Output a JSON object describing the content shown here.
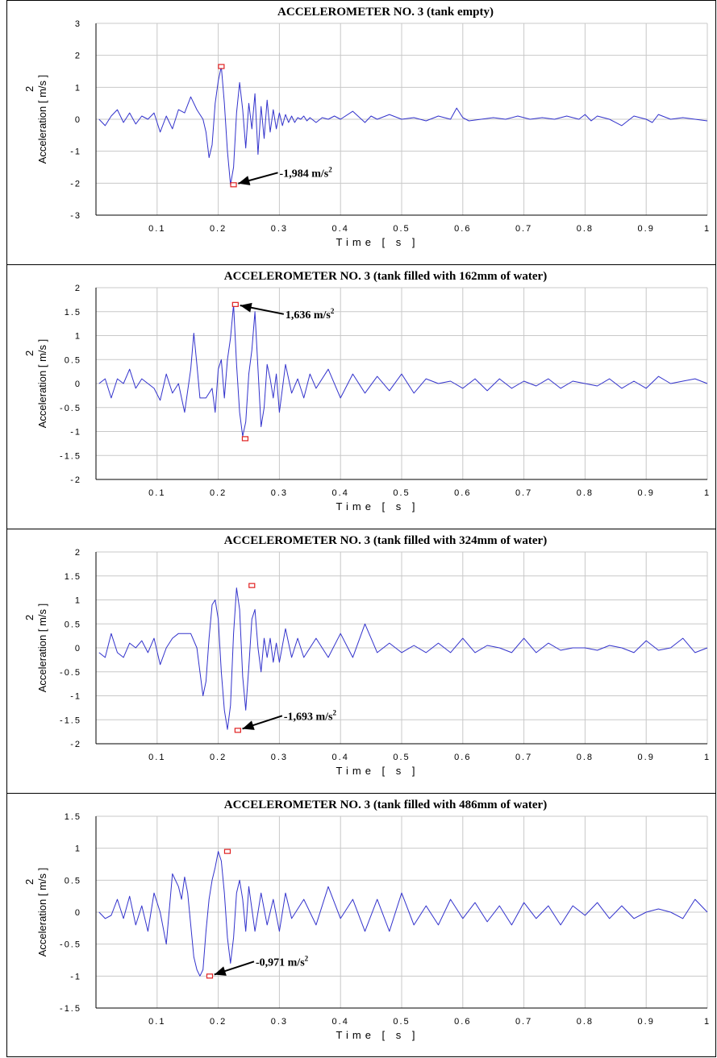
{
  "chart_data": [
    {
      "type": "line",
      "title": "ACCELEROMETER NO. 3 (tank empty)",
      "xlabel": "Time [ s ]",
      "ylabel": "Acceleration [ m/s ]",
      "ylabel_sup": "2",
      "xlim": [
        0,
        1.0
      ],
      "ylim": [
        -3,
        3
      ],
      "xticks": [
        "0.1",
        "0.2",
        "0.3",
        "0.4",
        "0.5",
        "0.6",
        "0.7",
        "0.8",
        "0.9",
        "1"
      ],
      "yticks": [
        "3",
        "2",
        "1",
        "0",
        "-1",
        "-2",
        "-3"
      ],
      "grid": true,
      "series": [
        {
          "color": "#3333cc",
          "x": [
            0.005,
            0.015,
            0.025,
            0.035,
            0.045,
            0.055,
            0.065,
            0.075,
            0.085,
            0.095,
            0.105,
            0.115,
            0.125,
            0.135,
            0.145,
            0.155,
            0.165,
            0.175,
            0.18,
            0.185,
            0.19,
            0.195,
            0.2,
            0.205,
            0.21,
            0.215,
            0.22,
            0.225,
            0.23,
            0.235,
            0.24,
            0.245,
            0.25,
            0.255,
            0.26,
            0.265,
            0.27,
            0.275,
            0.28,
            0.285,
            0.29,
            0.295,
            0.3,
            0.305,
            0.31,
            0.315,
            0.32,
            0.325,
            0.33,
            0.335,
            0.34,
            0.345,
            0.35,
            0.36,
            0.37,
            0.38,
            0.39,
            0.4,
            0.42,
            0.44,
            0.45,
            0.46,
            0.48,
            0.5,
            0.52,
            0.54,
            0.56,
            0.58,
            0.59,
            0.6,
            0.61,
            0.63,
            0.65,
            0.67,
            0.69,
            0.71,
            0.73,
            0.75,
            0.77,
            0.79,
            0.8,
            0.81,
            0.82,
            0.84,
            0.86,
            0.88,
            0.9,
            0.91,
            0.92,
            0.94,
            0.96,
            0.98,
            1.0
          ],
          "y": [
            0.0,
            -0.2,
            0.1,
            0.3,
            -0.1,
            0.2,
            -0.15,
            0.1,
            0.0,
            0.2,
            -0.4,
            0.1,
            -0.3,
            0.3,
            0.2,
            0.7,
            0.3,
            0.0,
            -0.4,
            -1.2,
            -0.8,
            0.5,
            1.2,
            1.65,
            0.5,
            -1.0,
            -2.05,
            -1.5,
            0.2,
            1.15,
            0.3,
            -0.9,
            0.5,
            -0.3,
            0.8,
            -1.1,
            0.4,
            -0.6,
            0.6,
            -0.4,
            0.3,
            -0.3,
            0.2,
            -0.2,
            0.15,
            -0.1,
            0.1,
            -0.1,
            0.05,
            0.0,
            0.1,
            -0.05,
            0.05,
            -0.1,
            0.05,
            0.0,
            0.1,
            0.0,
            0.25,
            -0.1,
            0.1,
            0.0,
            0.15,
            0.0,
            0.05,
            -0.05,
            0.1,
            0.0,
            0.35,
            0.05,
            -0.05,
            0.0,
            0.05,
            0.0,
            0.1,
            0.0,
            0.05,
            0.0,
            0.1,
            0.0,
            0.15,
            -0.05,
            0.1,
            0.0,
            -0.2,
            0.1,
            0.0,
            -0.1,
            0.15,
            0.0,
            0.05,
            0.0,
            -0.05
          ]
        }
      ],
      "markers": [
        {
          "x": 0.205,
          "y": 1.65
        },
        {
          "x": 0.225,
          "y": -2.05
        }
      ],
      "annotation": {
        "text": "-1,984 m/s",
        "sup": "2",
        "x": 0.225,
        "y": -2.05
      }
    },
    {
      "type": "line",
      "title": "ACCELEROMETER NO. 3 (tank filled with 162mm of water)",
      "xlabel": "Time [ s ]",
      "ylabel": "Acceleration [ m/s ]",
      "ylabel_sup": "2",
      "xlim": [
        0,
        1.0
      ],
      "ylim": [
        -2,
        2
      ],
      "xticks": [
        "0.1",
        "0.2",
        "0.3",
        "0.4",
        "0.5",
        "0.6",
        "0.7",
        "0.8",
        "0.9",
        "1"
      ],
      "yticks": [
        "2",
        "1.5",
        "1",
        "0.5",
        "0",
        "-0.5",
        "-1",
        "-1.5",
        "-2"
      ],
      "grid": true,
      "series": [
        {
          "color": "#3333cc",
          "x": [
            0.005,
            0.015,
            0.025,
            0.035,
            0.045,
            0.055,
            0.065,
            0.075,
            0.085,
            0.095,
            0.105,
            0.115,
            0.125,
            0.135,
            0.145,
            0.155,
            0.16,
            0.165,
            0.17,
            0.18,
            0.19,
            0.195,
            0.2,
            0.205,
            0.21,
            0.215,
            0.22,
            0.225,
            0.23,
            0.235,
            0.24,
            0.245,
            0.25,
            0.255,
            0.26,
            0.265,
            0.27,
            0.275,
            0.28,
            0.285,
            0.29,
            0.295,
            0.3,
            0.31,
            0.32,
            0.33,
            0.34,
            0.35,
            0.36,
            0.38,
            0.4,
            0.42,
            0.44,
            0.46,
            0.48,
            0.5,
            0.52,
            0.54,
            0.56,
            0.58,
            0.6,
            0.62,
            0.64,
            0.66,
            0.68,
            0.7,
            0.72,
            0.74,
            0.76,
            0.78,
            0.8,
            0.82,
            0.84,
            0.86,
            0.88,
            0.9,
            0.92,
            0.94,
            0.96,
            0.98,
            1.0
          ],
          "y": [
            0.0,
            0.1,
            -0.3,
            0.1,
            0.0,
            0.3,
            -0.1,
            0.1,
            0.0,
            -0.1,
            -0.35,
            0.2,
            -0.2,
            0.0,
            -0.6,
            0.3,
            1.05,
            0.4,
            -0.3,
            -0.3,
            -0.1,
            -0.6,
            0.3,
            0.5,
            -0.3,
            0.5,
            0.95,
            1.65,
            0.4,
            -0.6,
            -1.1,
            -0.8,
            0.2,
            0.7,
            1.5,
            0.3,
            -0.9,
            -0.5,
            0.4,
            0.1,
            -0.3,
            0.2,
            -0.6,
            0.4,
            -0.2,
            0.1,
            -0.3,
            0.2,
            -0.1,
            0.3,
            -0.3,
            0.2,
            -0.2,
            0.15,
            -0.15,
            0.2,
            -0.2,
            0.1,
            0.0,
            0.05,
            -0.1,
            0.1,
            -0.15,
            0.1,
            -0.1,
            0.05,
            -0.05,
            0.1,
            -0.1,
            0.05,
            0.0,
            -0.05,
            0.1,
            -0.1,
            0.05,
            -0.1,
            0.15,
            0.0,
            0.05,
            0.1,
            0.0
          ]
        }
      ],
      "markers": [
        {
          "x": 0.228,
          "y": 1.65
        },
        {
          "x": 0.244,
          "y": -1.15
        }
      ],
      "annotation": {
        "text": "1,636 m/s",
        "sup": "2",
        "x": 0.228,
        "y": 1.65
      }
    },
    {
      "type": "line",
      "title": "ACCELEROMETER NO. 3 (tank filled with 324mm of water)",
      "xlabel": "Time [ s ]",
      "ylabel": "Acceleration [ m/s ]",
      "ylabel_sup": "2",
      "xlim": [
        0,
        1.0
      ],
      "ylim": [
        -2,
        2
      ],
      "xticks": [
        "0.1",
        "0.2",
        "0.3",
        "0.4",
        "0.5",
        "0.6",
        "0.7",
        "0.8",
        "0.9",
        "1"
      ],
      "yticks": [
        "2",
        "1.5",
        "1",
        "0.5",
        "0",
        "-0.5",
        "-1",
        "-1.5",
        "-2"
      ],
      "grid": true,
      "series": [
        {
          "color": "#3333cc",
          "x": [
            0.005,
            0.015,
            0.025,
            0.035,
            0.045,
            0.055,
            0.065,
            0.075,
            0.085,
            0.095,
            0.105,
            0.115,
            0.125,
            0.135,
            0.145,
            0.155,
            0.165,
            0.17,
            0.175,
            0.18,
            0.185,
            0.19,
            0.195,
            0.2,
            0.205,
            0.21,
            0.215,
            0.22,
            0.225,
            0.23,
            0.235,
            0.24,
            0.245,
            0.25,
            0.255,
            0.26,
            0.265,
            0.27,
            0.275,
            0.28,
            0.285,
            0.29,
            0.295,
            0.3,
            0.31,
            0.32,
            0.33,
            0.34,
            0.36,
            0.38,
            0.4,
            0.42,
            0.44,
            0.45,
            0.46,
            0.48,
            0.5,
            0.52,
            0.54,
            0.56,
            0.58,
            0.6,
            0.62,
            0.64,
            0.66,
            0.68,
            0.7,
            0.72,
            0.74,
            0.76,
            0.78,
            0.8,
            0.82,
            0.84,
            0.86,
            0.88,
            0.9,
            0.92,
            0.94,
            0.96,
            0.98,
            1.0
          ],
          "y": [
            -0.1,
            -0.2,
            0.3,
            -0.1,
            -0.2,
            0.1,
            0.0,
            0.15,
            -0.1,
            0.2,
            -0.35,
            0.0,
            0.2,
            0.3,
            0.3,
            0.3,
            0.0,
            -0.5,
            -1.0,
            -0.7,
            0.2,
            0.9,
            1.0,
            0.6,
            -0.5,
            -1.3,
            -1.7,
            -1.2,
            0.3,
            1.25,
            0.8,
            -0.6,
            -1.3,
            -0.4,
            0.6,
            0.8,
            0.0,
            -0.5,
            0.2,
            -0.2,
            0.2,
            -0.3,
            0.1,
            -0.3,
            0.4,
            -0.2,
            0.2,
            -0.2,
            0.2,
            -0.2,
            0.3,
            -0.2,
            0.5,
            0.2,
            -0.1,
            0.1,
            -0.1,
            0.05,
            -0.1,
            0.1,
            -0.1,
            0.2,
            -0.1,
            0.05,
            0.0,
            -0.1,
            0.2,
            -0.1,
            0.1,
            -0.05,
            0.0,
            0.0,
            -0.05,
            0.05,
            0.0,
            -0.1,
            0.15,
            -0.05,
            0.0,
            0.2,
            -0.1,
            0.0
          ]
        }
      ],
      "markers": [
        {
          "x": 0.255,
          "y": 1.3
        },
        {
          "x": 0.232,
          "y": -1.72
        }
      ],
      "annotation": {
        "text": "-1,693 m/s",
        "sup": "2",
        "x": 0.232,
        "y": -1.72
      }
    },
    {
      "type": "line",
      "title": "ACCELEROMETER NO. 3 (tank filled with 486mm of water)",
      "xlabel": "Time [ s ]",
      "ylabel": "Acceleration [ m/s ]",
      "ylabel_sup": "2",
      "xlim": [
        0,
        1.0
      ],
      "ylim": [
        -1.5,
        1.5
      ],
      "xticks": [
        "0.1",
        "0.2",
        "0.3",
        "0.4",
        "0.5",
        "0.6",
        "0.7",
        "0.8",
        "0.9",
        "1"
      ],
      "yticks": [
        "1.5",
        "1",
        "0.5",
        "0",
        "-0.5",
        "-1",
        "-1.5"
      ],
      "grid": true,
      "series": [
        {
          "color": "#3333cc",
          "x": [
            0.005,
            0.015,
            0.025,
            0.035,
            0.045,
            0.055,
            0.065,
            0.075,
            0.085,
            0.095,
            0.105,
            0.115,
            0.125,
            0.135,
            0.14,
            0.145,
            0.15,
            0.155,
            0.16,
            0.165,
            0.17,
            0.175,
            0.18,
            0.185,
            0.19,
            0.195,
            0.2,
            0.205,
            0.21,
            0.215,
            0.22,
            0.225,
            0.23,
            0.235,
            0.24,
            0.245,
            0.25,
            0.26,
            0.27,
            0.28,
            0.29,
            0.3,
            0.31,
            0.32,
            0.34,
            0.36,
            0.38,
            0.4,
            0.42,
            0.44,
            0.46,
            0.48,
            0.5,
            0.52,
            0.54,
            0.56,
            0.58,
            0.6,
            0.62,
            0.64,
            0.66,
            0.68,
            0.7,
            0.72,
            0.74,
            0.76,
            0.78,
            0.8,
            0.82,
            0.84,
            0.86,
            0.88,
            0.9,
            0.92,
            0.94,
            0.96,
            0.98,
            1.0
          ],
          "y": [
            0.0,
            -0.1,
            -0.05,
            0.2,
            -0.1,
            0.25,
            -0.2,
            0.1,
            -0.3,
            0.3,
            0.0,
            -0.5,
            0.6,
            0.4,
            0.2,
            0.55,
            0.3,
            -0.2,
            -0.7,
            -0.9,
            -1.0,
            -0.9,
            -0.3,
            0.2,
            0.5,
            0.7,
            0.95,
            0.8,
            0.3,
            -0.4,
            -0.8,
            -0.4,
            0.3,
            0.5,
            0.2,
            -0.3,
            0.4,
            -0.3,
            0.3,
            -0.2,
            0.2,
            -0.3,
            0.3,
            -0.1,
            0.2,
            -0.2,
            0.4,
            -0.1,
            0.2,
            -0.3,
            0.2,
            -0.3,
            0.3,
            -0.2,
            0.1,
            -0.2,
            0.2,
            -0.1,
            0.15,
            -0.15,
            0.1,
            -0.2,
            0.15,
            -0.1,
            0.1,
            -0.2,
            0.1,
            -0.05,
            0.15,
            -0.1,
            0.1,
            -0.1,
            0.0,
            0.05,
            0.0,
            -0.1,
            0.2,
            0.0
          ]
        }
      ],
      "markers": [
        {
          "x": 0.215,
          "y": 0.95
        },
        {
          "x": 0.186,
          "y": -1.0
        }
      ],
      "annotation": {
        "text": "-0,971 m/s",
        "sup": "2",
        "x": 0.186,
        "y": -1.0
      }
    }
  ]
}
